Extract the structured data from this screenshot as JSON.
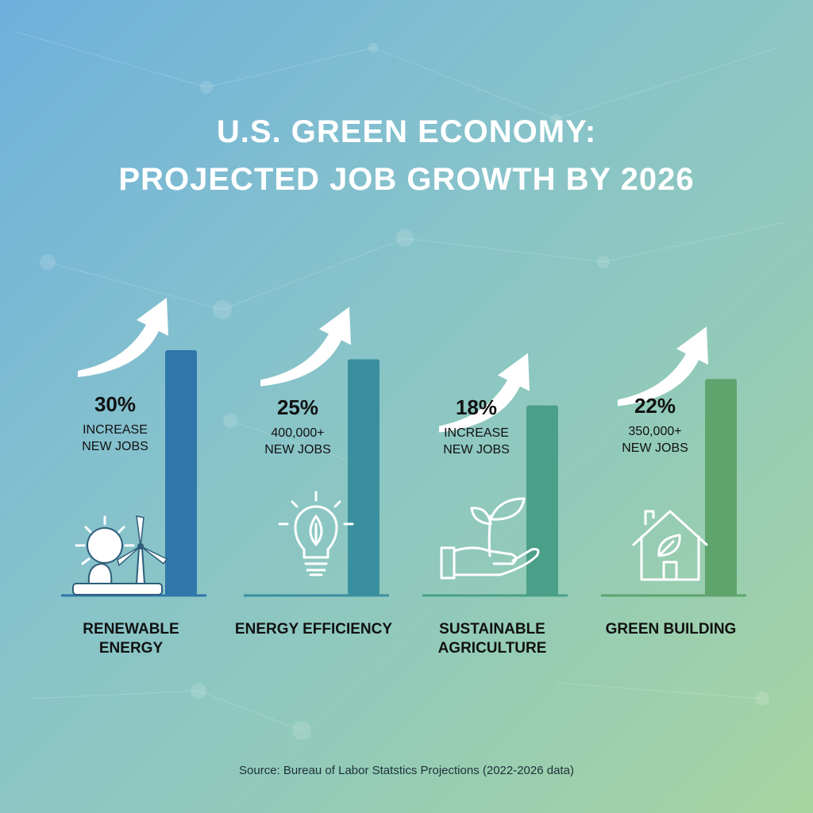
{
  "title": {
    "line1": "U.S. GREEN ECONOMY:",
    "line2": "PROJECTED JOB GROWTH BY 2026"
  },
  "source": "Source: Bureau of Labor Statstics Projections (2022-2026 data)",
  "chart_data": {
    "type": "bar",
    "title": "U.S. GREEN ECONOMY: PROJECTED JOB GROWTH BY 2026",
    "categories": [
      [
        "RENEWABLE",
        "ENERGY"
      ],
      [
        "ENERGY EFFICIENCY"
      ],
      [
        "SUSTAINABLE",
        "AGRICULTURE"
      ],
      [
        "GREEN BUILDING"
      ]
    ],
    "values": [
      30,
      25,
      18,
      22
    ],
    "value_labels": [
      "30%",
      "25%",
      "18%",
      "22%"
    ],
    "sub_labels": [
      [
        "INCREASE",
        "NEW JOBS"
      ],
      [
        "400,000+",
        "NEW JOBS"
      ],
      [
        "INCREASE",
        "NEW JOBS"
      ],
      [
        "350,000+",
        "NEW JOBS"
      ]
    ],
    "icons": [
      "sun-wind-turbine-icon",
      "lightbulb-leaf-icon",
      "hand-sprout-icon",
      "house-leaf-icon"
    ],
    "colors": [
      "#2f77ab",
      "#3a8f9f",
      "#4a9f88",
      "#5ea46c"
    ],
    "ylim": [
      0,
      35
    ],
    "grid": false,
    "legend": "none"
  }
}
